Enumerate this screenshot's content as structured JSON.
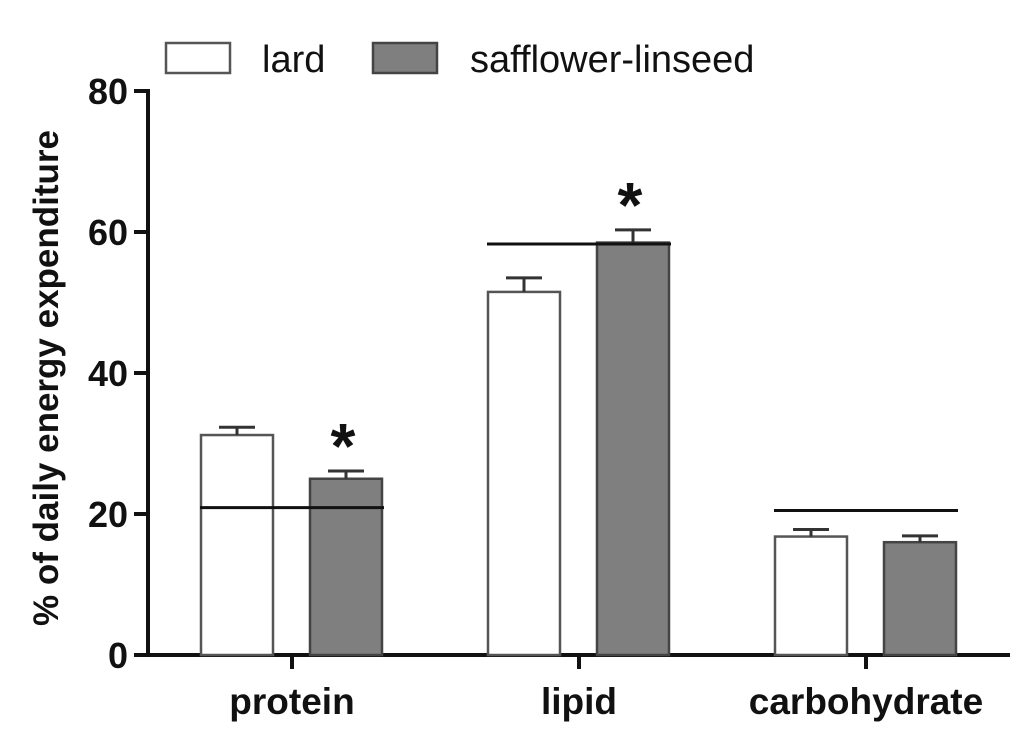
{
  "chart_data": {
    "type": "bar",
    "title": "",
    "xlabel": "",
    "ylabel": "% of daily energy expenditure",
    "ylim": [
      0,
      80
    ],
    "yticks": [
      "0",
      "20",
      "40",
      "60",
      "80"
    ],
    "categories": [
      "protein",
      "lipid",
      "carbohydrate"
    ],
    "series": [
      {
        "name": "lard",
        "values": [
          31.2,
          51.5,
          16.8
        ],
        "errors": [
          1.1,
          2.0,
          1.0
        ],
        "color": "#ffffff",
        "edge": "#555555"
      },
      {
        "name": "safflower-linseed",
        "values": [
          25.0,
          58.5,
          16.0
        ],
        "errors": [
          1.1,
          1.8,
          0.9
        ],
        "color": "#7f7f7f",
        "edge": "#444444"
      }
    ],
    "reference_lines": [
      {
        "category": "protein",
        "value": 20.9
      },
      {
        "category": "lipid",
        "value": 58.3
      },
      {
        "category": "carbohydrate",
        "value": 20.5
      }
    ],
    "annotations": [
      {
        "category": "protein",
        "series": "safflower-linseed",
        "text": "*"
      },
      {
        "category": "lipid",
        "series": "safflower-linseed",
        "text": "*"
      }
    ],
    "legend": "top-left"
  }
}
